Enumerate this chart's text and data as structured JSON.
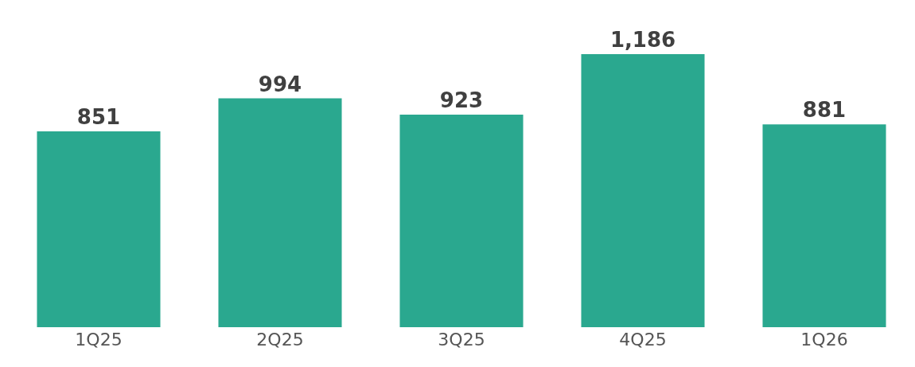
{
  "chart_data": {
    "type": "bar",
    "categories": [
      "1Q25",
      "2Q25",
      "3Q25",
      "4Q25",
      "1Q26"
    ],
    "values": [
      851,
      994,
      923,
      1186,
      881
    ],
    "value_labels": [
      "851",
      "994",
      "923",
      "1,186",
      "881"
    ],
    "color": "#2aa88f",
    "tick_labels": "x"
  }
}
